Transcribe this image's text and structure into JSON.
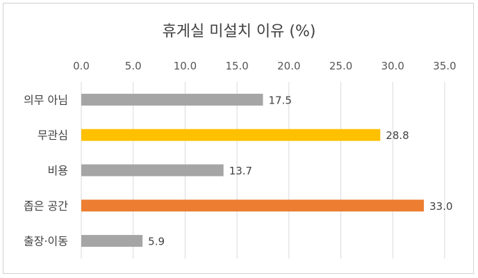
{
  "chart_data": {
    "type": "bar",
    "orientation": "horizontal",
    "title": "휴게실 미설치 이유 (%)",
    "categories": [
      "의무 아님",
      "무관심",
      "비용",
      "좁은 공간",
      "출장·이동"
    ],
    "values": [
      17.5,
      28.8,
      13.7,
      33.0,
      5.9
    ],
    "value_labels": [
      "17.5",
      "28.8",
      "13.7",
      "33.0",
      "5.9"
    ],
    "bar_colors": [
      "#a5a5a5",
      "#ffc000",
      "#a5a5a5",
      "#ed7d31",
      "#a5a5a5"
    ],
    "x_ticks": [
      "0.0",
      "5.0",
      "10.0",
      "15.0",
      "20.0",
      "25.0",
      "30.0",
      "35.0"
    ],
    "xlim": [
      0,
      35
    ],
    "x_axis_position": "top",
    "grid": true,
    "legend": "none"
  }
}
